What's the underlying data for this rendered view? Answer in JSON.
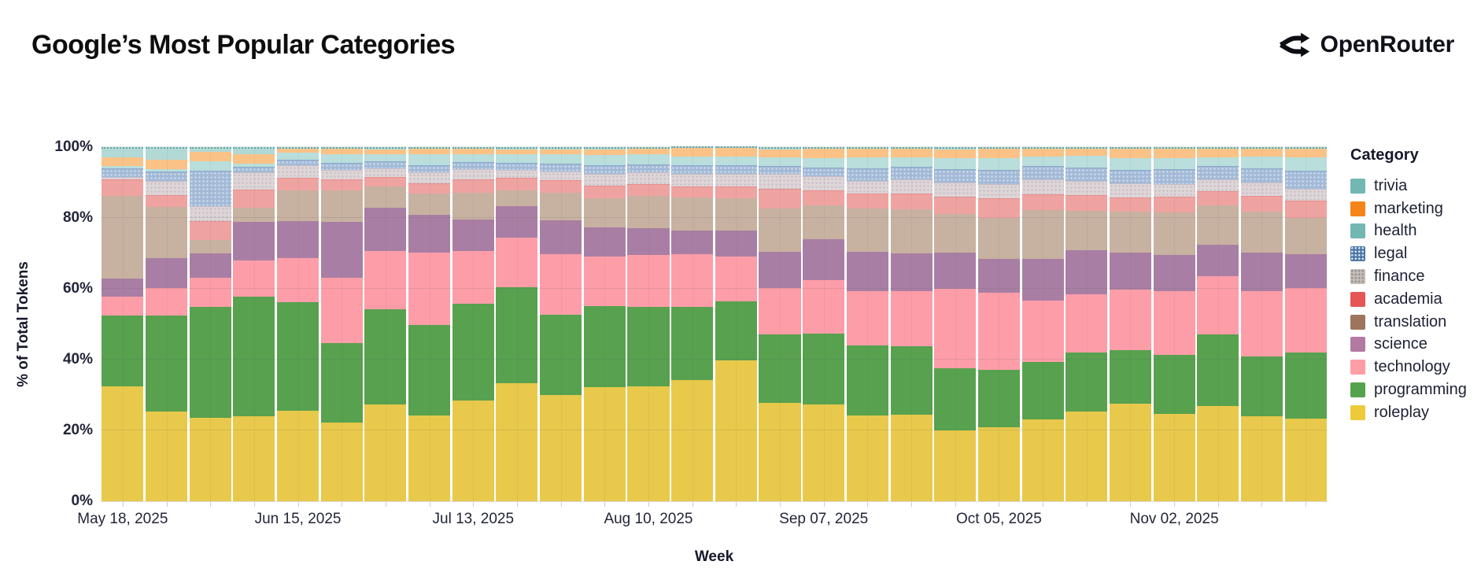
{
  "header": {
    "title": "Google’s Most Popular Categories",
    "brand": "OpenRouter"
  },
  "chart_data": {
    "type": "bar",
    "stacked": true,
    "title": "Google’s Most Popular Categories",
    "xlabel": "Week",
    "ylabel": "% of Total Tokens",
    "ylim": [
      0,
      100
    ],
    "grid": true,
    "legend_position": "right",
    "legend_title": "Category",
    "y_ticks": [
      {
        "value": 0,
        "label": "0%"
      },
      {
        "value": 20,
        "label": "20%"
      },
      {
        "value": 40,
        "label": "40%"
      },
      {
        "value": 60,
        "label": "60%"
      },
      {
        "value": 80,
        "label": "80%"
      },
      {
        "value": 100,
        "label": "100%"
      }
    ],
    "x_tick_labels": [
      "May 18, 2025",
      "Jun 15, 2025",
      "Jul 13, 2025",
      "Aug 10, 2025",
      "Sep 07, 2025",
      "Oct 05, 2025",
      "Nov 02, 2025"
    ],
    "x_tick_indices": [
      0,
      4,
      8,
      12,
      16,
      20,
      24
    ],
    "weeks": [
      "May 18, 2025",
      "May 25, 2025",
      "Jun 01, 2025",
      "Jun 08, 2025",
      "Jun 15, 2025",
      "Jun 22, 2025",
      "Jun 29, 2025",
      "Jul 06, 2025",
      "Jul 13, 2025",
      "Jul 20, 2025",
      "Jul 27, 2025",
      "Aug 03, 2025",
      "Aug 10, 2025",
      "Aug 17, 2025",
      "Aug 24, 2025",
      "Aug 31, 2025",
      "Sep 07, 2025",
      "Sep 14, 2025",
      "Sep 21, 2025",
      "Sep 28, 2025",
      "Oct 05, 2025",
      "Oct 12, 2025",
      "Oct 19, 2025",
      "Oct 26, 2025",
      "Nov 02, 2025",
      "Nov 09, 2025",
      "Nov 16, 2025",
      "Nov 23, 2025"
    ],
    "legend_order_top_to_bottom": [
      "trivia",
      "marketing",
      "health",
      "legal",
      "finance",
      "academia",
      "translation",
      "science",
      "technology",
      "programming",
      "roleplay"
    ],
    "categories": [
      {
        "name": "trivia",
        "legend_color": "#72b7b2",
        "bar_color": "#b2d9d5",
        "pattern": null,
        "seg_class": "seg-trivia"
      },
      {
        "name": "marketing",
        "legend_color": "#f58518",
        "bar_color": "#fac287",
        "pattern": null,
        "seg_class": ""
      },
      {
        "name": "health",
        "legend_color": "#72b7b2",
        "bar_color": "#b9dedb",
        "pattern": null,
        "seg_class": ""
      },
      {
        "name": "legal",
        "legend_color": "#4c78a8",
        "bar_color": "#a2bad7",
        "pattern": "sw-legal",
        "seg_class": "seg-legal"
      },
      {
        "name": "finance",
        "legend_color": "#c7bbb0",
        "bar_color": "#ded5d7",
        "pattern": "sw-finance",
        "seg_class": "seg-finance"
      },
      {
        "name": "academia",
        "legend_color": "#e45756",
        "bar_color": "#efa3a1",
        "pattern": null,
        "seg_class": "seg-academia"
      },
      {
        "name": "translation",
        "legend_color": "#9d755d",
        "bar_color": "#c7b1a0",
        "pattern": null,
        "seg_class": ""
      },
      {
        "name": "science",
        "legend_color": "#b279a2",
        "bar_color": "#a97ea4",
        "pattern": null,
        "seg_class": ""
      },
      {
        "name": "technology",
        "legend_color": "#ff9da6",
        "bar_color": "#fd9da8",
        "pattern": null,
        "seg_class": ""
      },
      {
        "name": "programming",
        "legend_color": "#54a24b",
        "bar_color": "#57a14f",
        "pattern": null,
        "seg_class": ""
      },
      {
        "name": "roleplay",
        "legend_color": "#eeca3b",
        "bar_color": "#e8c94b",
        "pattern": null,
        "seg_class": ""
      }
    ],
    "series": [
      {
        "name": "roleplay",
        "values": [
          32.5,
          25.4,
          23.5,
          24.0,
          25.5,
          22.3,
          27.3,
          24.2,
          28.4,
          33.3,
          30.0,
          32.2,
          32.5,
          34.3,
          39.8,
          27.7,
          27.4,
          24.2,
          24.6,
          19.9,
          21.0,
          23.0,
          25.4,
          27.5,
          24.6,
          26.9,
          23.9,
          23.4
        ]
      },
      {
        "name": "programming",
        "values": [
          20.0,
          27.1,
          31.4,
          33.8,
          30.8,
          22.3,
          27.0,
          25.6,
          27.3,
          27.2,
          22.6,
          23.0,
          22.5,
          20.6,
          16.7,
          19.5,
          20.0,
          20.0,
          19.3,
          17.7,
          16.2,
          16.4,
          16.5,
          15.2,
          16.7,
          20.3,
          17.0,
          18.7
        ]
      },
      {
        "name": "technology",
        "values": [
          5.3,
          7.8,
          8.3,
          10.2,
          12.4,
          18.6,
          16.3,
          20.5,
          15.0,
          13.9,
          17.1,
          13.9,
          14.5,
          14.8,
          12.6,
          13.0,
          15.1,
          15.3,
          15.6,
          22.4,
          22.0,
          17.3,
          16.5,
          17.0,
          18.0,
          16.3,
          18.5,
          18.1
        ]
      },
      {
        "name": "science",
        "values": [
          5.0,
          8.4,
          6.9,
          10.8,
          10.4,
          15.6,
          12.3,
          10.5,
          8.9,
          9.0,
          9.7,
          8.2,
          7.6,
          6.7,
          7.4,
          10.2,
          11.4,
          11.2,
          10.7,
          10.2,
          9.5,
          11.7,
          12.5,
          10.5,
          10.3,
          9.0,
          10.8,
          9.5
        ]
      },
      {
        "name": "translation",
        "values": [
          23.5,
          14.5,
          3.6,
          4.1,
          8.6,
          8.9,
          5.9,
          6.0,
          7.5,
          4.3,
          7.8,
          8.3,
          9.1,
          9.3,
          9.0,
          12.2,
          9.6,
          12.1,
          12.4,
          11.0,
          11.7,
          13.8,
          11.0,
          11.5,
          11.9,
          11.1,
          11.5,
          10.4
        ]
      },
      {
        "name": "academia",
        "values": [
          4.7,
          3.3,
          5.5,
          5.2,
          3.6,
          3.3,
          2.7,
          3.0,
          3.7,
          3.7,
          3.4,
          3.6,
          3.3,
          3.3,
          3.5,
          5.7,
          4.3,
          4.3,
          4.6,
          4.8,
          5.4,
          4.3,
          4.5,
          4.1,
          4.5,
          4.0,
          4.5,
          4.8
        ]
      },
      {
        "name": "finance",
        "values": [
          0.6,
          4.1,
          4.1,
          4.8,
          3.5,
          2.6,
          2.5,
          3.2,
          3.0,
          2.1,
          2.6,
          3.3,
          3.4,
          3.4,
          3.4,
          4.2,
          3.9,
          3.6,
          3.9,
          4.1,
          4.2,
          4.2,
          4.1,
          4.0,
          3.5,
          3.3,
          3.7,
          3.3
        ]
      },
      {
        "name": "legal",
        "values": [
          2.4,
          2.6,
          10.0,
          1.5,
          1.6,
          1.9,
          1.9,
          2.0,
          2.0,
          2.0,
          2.2,
          2.5,
          2.2,
          2.6,
          2.6,
          2.1,
          2.6,
          3.5,
          3.6,
          3.7,
          3.9,
          3.8,
          3.7,
          3.7,
          4.3,
          3.7,
          4.1,
          5.2
        ]
      },
      {
        "name": "health",
        "values": [
          0.6,
          0.7,
          2.8,
          1.0,
          2.1,
          2.6,
          2.2,
          3.0,
          2.3,
          2.4,
          2.6,
          2.7,
          2.8,
          2.4,
          2.4,
          2.6,
          2.7,
          3.0,
          2.7,
          3.0,
          3.3,
          2.8,
          3.3,
          3.4,
          3.0,
          2.6,
          3.3,
          3.7
        ]
      },
      {
        "name": "marketing",
        "values": [
          2.5,
          2.6,
          2.6,
          2.6,
          1.1,
          1.5,
          1.3,
          1.5,
          1.4,
          1.5,
          1.4,
          1.7,
          1.6,
          2.4,
          2.4,
          2.2,
          2.6,
          2.6,
          2.4,
          2.6,
          2.8,
          2.2,
          2.0,
          2.7,
          2.7,
          2.4,
          2.2,
          2.4
        ]
      },
      {
        "name": "trivia",
        "values": [
          2.9,
          3.6,
          1.3,
          2.0,
          0.4,
          0.4,
          0.6,
          0.5,
          0.5,
          0.6,
          0.6,
          0.6,
          0.5,
          0.2,
          0.2,
          0.6,
          0.4,
          0.4,
          0.5,
          0.6,
          0.4,
          0.4,
          0.5,
          0.4,
          0.5,
          0.4,
          0.5,
          0.5
        ]
      }
    ]
  }
}
